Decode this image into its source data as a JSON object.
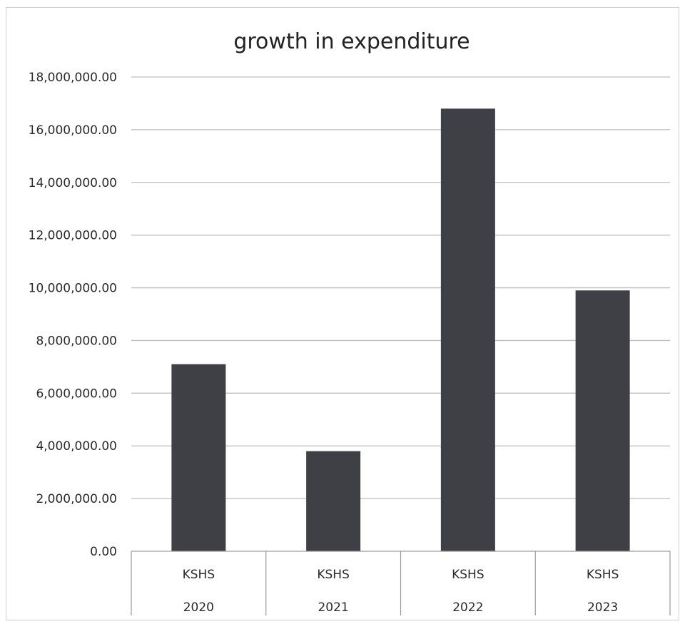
{
  "chart_data": {
    "type": "bar",
    "title": "growth in expenditure",
    "xlabel": "",
    "ylabel": "",
    "categories": [
      {
        "line1": "KSHS",
        "line2": "2020"
      },
      {
        "line1": "KSHS",
        "line2": "2021"
      },
      {
        "line1": "KSHS",
        "line2": "2022"
      },
      {
        "line1": "KSHS",
        "line2": "2023"
      }
    ],
    "values": [
      7100000,
      3800000,
      16800000,
      9900000
    ],
    "ylim": [
      0,
      18000000
    ],
    "yticks": [
      0,
      2000000,
      4000000,
      6000000,
      8000000,
      10000000,
      12000000,
      14000000,
      16000000,
      18000000
    ],
    "ytick_labels": [
      "0.00",
      "2,000,000.00",
      "4,000,000.00",
      "6,000,000.00",
      "8,000,000.00",
      "10,000,000.00",
      "12,000,000.00",
      "14,000,000.00",
      "16,000,000.00",
      "18,000,000.00"
    ],
    "grid": true,
    "legend": "none",
    "colors": {
      "bar": "#3f3f46",
      "grid": "#bdbdbd",
      "axis": "#9a9a9a"
    }
  }
}
